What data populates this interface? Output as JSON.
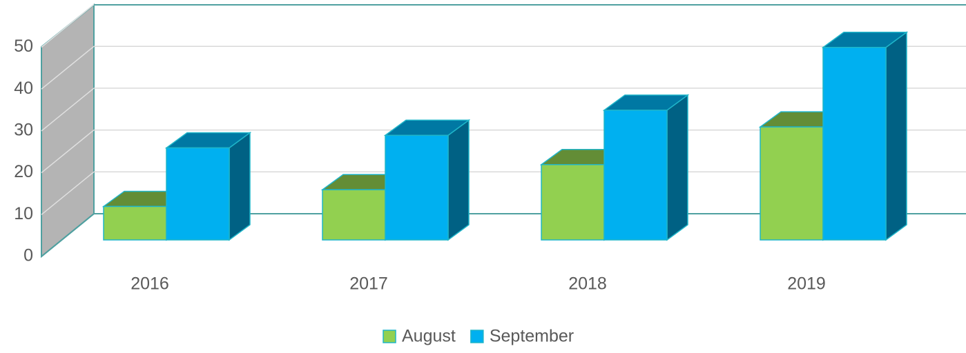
{
  "chart_data": {
    "type": "bar3d",
    "categories": [
      "2016",
      "2017",
      "2018",
      "2019"
    ],
    "series": [
      {
        "name": "August",
        "color": "#92d050",
        "values": [
          8,
          12,
          18,
          27
        ]
      },
      {
        "name": "September",
        "color": "#00b0f0",
        "values": [
          22,
          25,
          31,
          46
        ]
      }
    ],
    "ylim": [
      0,
      50
    ],
    "yticks": [
      0,
      10,
      20,
      30,
      40,
      50
    ],
    "grid": true,
    "legend": "bottom"
  }
}
